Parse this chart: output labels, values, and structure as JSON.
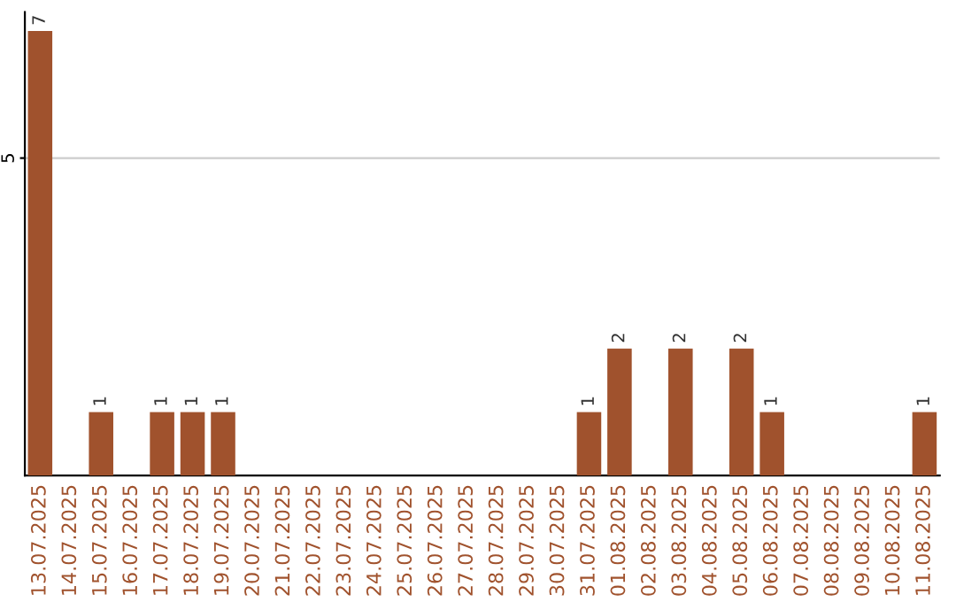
{
  "chart_data": {
    "type": "bar",
    "categories": [
      "13.07.2025",
      "14.07.2025",
      "15.07.2025",
      "16.07.2025",
      "17.07.2025",
      "18.07.2025",
      "19.07.2025",
      "20.07.2025",
      "21.07.2025",
      "22.07.2025",
      "23.07.2025",
      "24.07.2025",
      "25.07.2025",
      "26.07.2025",
      "27.07.2025",
      "28.07.2025",
      "29.07.2025",
      "30.07.2025",
      "31.07.2025",
      "01.08.2025",
      "02.08.2025",
      "03.08.2025",
      "04.08.2025",
      "05.08.2025",
      "06.08.2025",
      "07.08.2025",
      "08.08.2025",
      "09.08.2025",
      "10.08.2025",
      "11.08.2025"
    ],
    "values": [
      7,
      0,
      1,
      0,
      1,
      1,
      1,
      0,
      0,
      0,
      0,
      0,
      0,
      0,
      0,
      0,
      0,
      0,
      1,
      2,
      0,
      2,
      0,
      2,
      1,
      0,
      0,
      0,
      0,
      1
    ],
    "color": "#a0522d",
    "ylim": [
      0,
      7.3
    ],
    "yticks": [
      5
    ],
    "grid": "y",
    "value_labels": [
      "7",
      null,
      "1",
      null,
      "1",
      "1",
      "1",
      null,
      null,
      null,
      null,
      null,
      null,
      null,
      null,
      null,
      null,
      null,
      "1",
      "2",
      null,
      "2",
      null,
      "2",
      "1",
      null,
      null,
      null,
      null,
      "1"
    ]
  }
}
